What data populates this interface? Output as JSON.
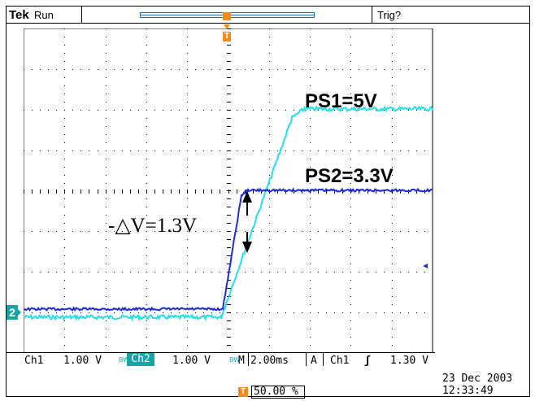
{
  "header": {
    "brand": "Tek",
    "acq_state": "Run",
    "trigger_status": "Trig?",
    "trigger_marker_label": "T"
  },
  "annotations": {
    "ps1_label": "PS1=5V",
    "ps2_label": "PS2=3.3V",
    "delta_label": "-△V=1.3V"
  },
  "channel2_marker": "2",
  "readouts": {
    "ch1_name": "Ch1",
    "ch1_scale": "1.00 V",
    "ch2_name": "Ch2",
    "ch2_scale": "1.00 V",
    "bw_mark": "BW",
    "timebase_prefix": "M",
    "timebase": "2.00ms",
    "trigger_mode": "A",
    "trigger_source": "Ch1",
    "trigger_slope": "ʃ",
    "trigger_level": "1.30 V",
    "trigger_position": "50.00 %"
  },
  "timestamp": {
    "date": "23 Dec  2003",
    "time": "12:33:49"
  },
  "colors": {
    "ch1": "#22e0e8",
    "ch2": "#1f2bd6",
    "trigger": "#f28c1e",
    "grid": "#000000"
  }
}
